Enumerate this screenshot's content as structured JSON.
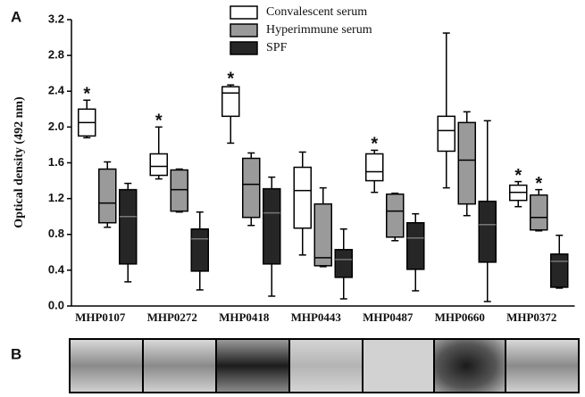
{
  "chart_data": {
    "type": "box",
    "ylabel": "Optical density (492 nm)",
    "categories": [
      "MHP0107",
      "MHP0272",
      "MHP0418",
      "MHP0443",
      "MHP0487",
      "MHP0660",
      "MHP0372"
    ],
    "ylim": [
      0,
      3.2
    ],
    "yticks": [
      {
        "value": 0,
        "label": "0.0"
      },
      0.4,
      0.8,
      1.2,
      1.6,
      {
        "value": 2,
        "label": "2.0"
      },
      2.4,
      2.8,
      3.2
    ],
    "series": [
      {
        "name": "Convalescent serum",
        "color": "#ffffff",
        "values": [
          {
            "min": 1.88,
            "q1": 1.9,
            "median": 2.05,
            "q3": 2.2,
            "max": 2.3
          },
          {
            "min": 1.42,
            "q1": 1.46,
            "median": 1.56,
            "q3": 1.7,
            "max": 2.0
          },
          {
            "min": 1.82,
            "q1": 2.12,
            "median": 2.38,
            "q3": 2.45,
            "max": 2.47
          },
          {
            "min": 0.57,
            "q1": 0.87,
            "median": 1.29,
            "q3": 1.55,
            "max": 1.72
          },
          {
            "min": 1.27,
            "q1": 1.4,
            "median": 1.5,
            "q3": 1.7,
            "max": 1.74
          },
          {
            "min": 1.32,
            "q1": 1.73,
            "median": 1.96,
            "q3": 2.12,
            "max": 3.05
          },
          {
            "min": 1.11,
            "q1": 1.18,
            "median": 1.27,
            "q3": 1.35,
            "max": 1.39
          }
        ]
      },
      {
        "name": "Hyperimmune serum",
        "color": "#9a9a9a",
        "values": [
          {
            "min": 0.88,
            "q1": 0.93,
            "median": 1.15,
            "q3": 1.53,
            "max": 1.61
          },
          {
            "min": 1.05,
            "q1": 1.06,
            "median": 1.3,
            "q3": 1.52,
            "max": 1.53
          },
          {
            "min": 0.9,
            "q1": 0.99,
            "median": 1.36,
            "q3": 1.65,
            "max": 1.71
          },
          {
            "min": 0.44,
            "q1": 0.45,
            "median": 0.54,
            "q3": 1.14,
            "max": 1.32
          },
          {
            "min": 0.73,
            "q1": 0.77,
            "median": 1.06,
            "q3": 1.25,
            "max": 1.26
          },
          {
            "min": 1.01,
            "q1": 1.14,
            "median": 1.63,
            "q3": 2.05,
            "max": 2.17
          },
          {
            "min": 0.84,
            "q1": 0.85,
            "median": 0.99,
            "q3": 1.24,
            "max": 1.3
          }
        ]
      },
      {
        "name": "SPF",
        "color": "#262626",
        "values": [
          {
            "min": 0.27,
            "q1": 0.47,
            "median": 1.0,
            "q3": 1.3,
            "max": 1.37
          },
          {
            "min": 0.18,
            "q1": 0.39,
            "median": 0.75,
            "q3": 0.86,
            "max": 1.05
          },
          {
            "min": 0.11,
            "q1": 0.47,
            "median": 1.04,
            "q3": 1.31,
            "max": 1.44
          },
          {
            "min": 0.08,
            "q1": 0.32,
            "median": 0.52,
            "q3": 0.63,
            "max": 0.86
          },
          {
            "min": 0.17,
            "q1": 0.41,
            "median": 0.76,
            "q3": 0.93,
            "max": 1.03
          },
          {
            "min": 0.05,
            "q1": 0.49,
            "median": 0.91,
            "q3": 1.17,
            "max": 2.07
          },
          {
            "min": 0.2,
            "q1": 0.21,
            "median": 0.5,
            "q3": 0.58,
            "max": 0.79
          }
        ]
      }
    ],
    "annotations": [
      {
        "text": "*",
        "category": "MHP0107",
        "series": "Convalescent serum"
      },
      {
        "text": "*",
        "category": "MHP0272",
        "series": "Convalescent serum"
      },
      {
        "text": "*",
        "category": "MHP0418",
        "series": "Convalescent serum"
      },
      {
        "text": "*",
        "category": "MHP0487",
        "series": "Convalescent serum"
      },
      {
        "text": "*",
        "category": "MHP0372",
        "series": "Convalescent serum"
      },
      {
        "text": "*",
        "category": "MHP0372",
        "series": "Hyperimmune serum"
      }
    ]
  },
  "panel_labels": [
    "A",
    "B"
  ]
}
